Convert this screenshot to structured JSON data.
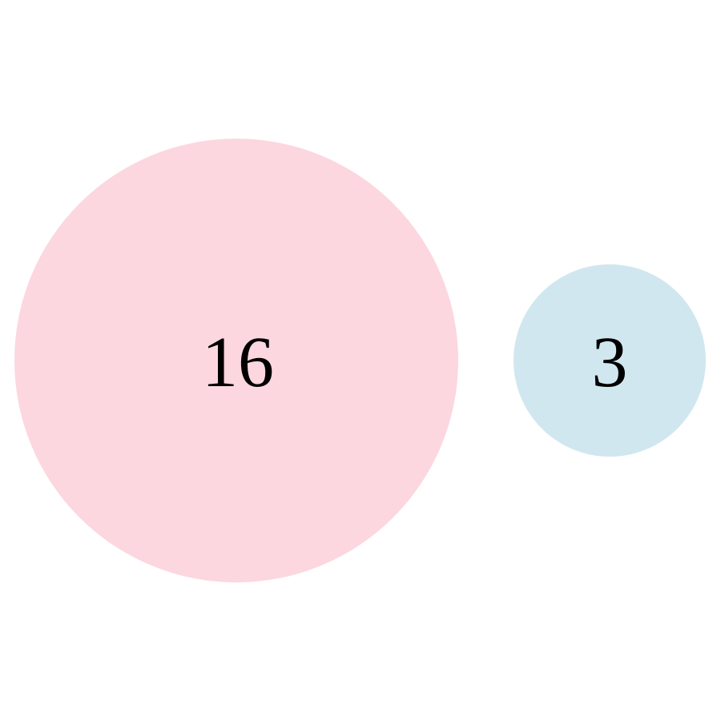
{
  "bubbles": [
    {
      "label": "16",
      "value": 16,
      "color": "#fcd7df"
    },
    {
      "label": "3",
      "value": 3,
      "color": "#d1e7ef"
    }
  ]
}
